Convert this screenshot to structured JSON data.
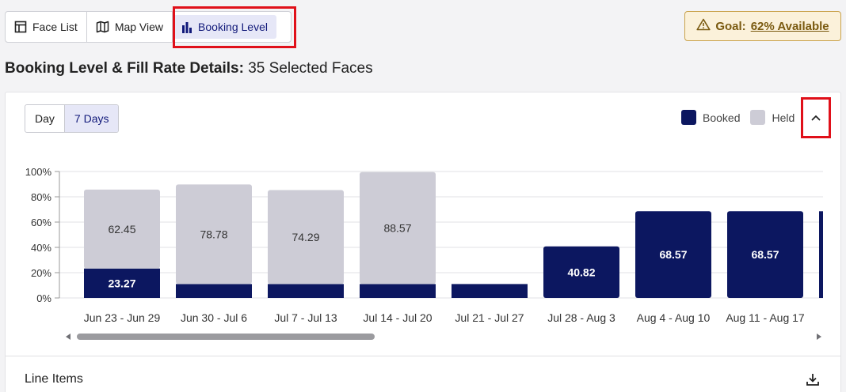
{
  "tabs": [
    {
      "label": "Face List",
      "icon": "table-icon"
    },
    {
      "label": "Map View",
      "icon": "map-icon"
    },
    {
      "label": "Booking Level",
      "icon": "bar-chart-icon",
      "active": true
    }
  ],
  "goal": {
    "prefix": "Goal:",
    "value": "62% Available",
    "icon": "warning-icon"
  },
  "heading": {
    "bold": "Booking Level & Fill Rate Details:",
    "rest": "35 Selected Faces"
  },
  "range_toggle": {
    "options": [
      "Day",
      "7 Days"
    ],
    "selected": "7 Days"
  },
  "legend": [
    {
      "name": "Booked",
      "color": "#0c1760"
    },
    {
      "name": "Held",
      "color": "#cdccd6"
    }
  ],
  "chart_data": {
    "type": "bar",
    "stacked": true,
    "categories": [
      "Jun 23 - Jun 29",
      "Jun 30 - Jul 6",
      "Jul 7 - Jul 13",
      "Jul 14 - Jul 20",
      "Jul 21 - Jul 27",
      "Jul 28 - Aug 3",
      "Aug 4 - Aug 10",
      "Aug 11 - Aug 17"
    ],
    "series": [
      {
        "name": "Booked",
        "values": [
          23.27,
          11,
          11,
          11,
          11,
          40.82,
          68.57,
          68.57
        ],
        "labels": [
          "23.27",
          "",
          "",
          "",
          "",
          "40.82",
          "68.57",
          "68.57"
        ],
        "color": "#0c1760"
      },
      {
        "name": "Held",
        "values": [
          62.45,
          78.78,
          74.29,
          88.57,
          0,
          0,
          0,
          0
        ],
        "labels": [
          "62.45",
          "78.78",
          "74.29",
          "88.57",
          "",
          "",
          "",
          ""
        ],
        "color": "#cdccd6"
      }
    ],
    "y_ticks": [
      "0%",
      "20%",
      "40%",
      "60%",
      "80%",
      "100%"
    ],
    "ylim": [
      0,
      100
    ],
    "grid": true,
    "legend_position": "top-right"
  },
  "line_items": {
    "label": "Line Items"
  }
}
